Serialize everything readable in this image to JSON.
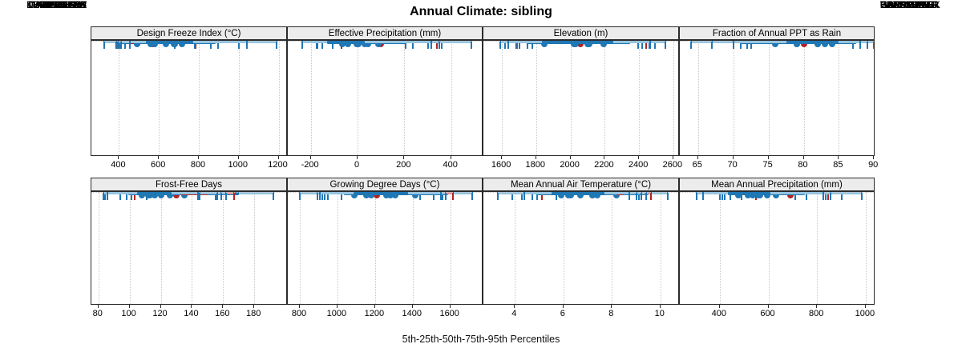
{
  "title": "Annual Climate: sibling",
  "caption": "5th-25th-50th-75th-95th Percentiles",
  "stations": [
    "HARKERS",
    "GAPPMAYER",
    "HORROCKS",
    "HENEFER",
    "BRADSHAW",
    "WALLSBURG",
    "DEER CREEK",
    "BEZZANT"
  ],
  "highlighted_station": "GAPPMAYER",
  "colors": {
    "normal": "#1f77b4",
    "normal_light": "#96c4e0",
    "highlight": "#b22222",
    "highlight_light": "#dd9b9b",
    "strip_bg": "#ececec",
    "panel_border": "#2b2b2b",
    "grid": "#c8c8c8"
  },
  "chart_data": {
    "type": "dot-interval-trellis",
    "layout": "2 rows x 4 cols, shared station rows, GAPPMAYER highlighted",
    "percentiles": [
      5,
      25,
      50,
      75,
      95
    ],
    "panels": [
      {
        "title": "Design Freeze Index (°C)",
        "xlim": [
          262,
          1246
        ],
        "ticks": [
          400,
          600,
          800,
          1000,
          1200
        ],
        "values": [
          [
            325,
            390,
            490,
            565,
            680
          ],
          [
            385,
            460,
            570,
            640,
            785
          ],
          [
            390,
            575,
            675,
            885,
            1000
          ],
          [
            430,
            545,
            680,
            760,
            895
          ],
          [
            405,
            610,
            715,
            855,
            1190
          ],
          [
            400,
            475,
            560,
            650,
            860
          ],
          [
            410,
            480,
            580,
            670,
            780
          ],
          [
            455,
            535,
            635,
            770,
            1040
          ]
        ]
      },
      {
        "title": "Effective Precipitation (mm)",
        "xlim": [
          -298,
          538
        ],
        "ticks": [
          -200,
          0,
          200,
          400
        ],
        "values": [
          [
            -175,
            -40,
            30,
            120,
            360
          ],
          [
            -70,
            -40,
            100,
            210,
            340
          ],
          [
            -170,
            -75,
            5,
            120,
            300
          ],
          [
            -105,
            -40,
            45,
            120,
            235
          ],
          [
            -235,
            -20,
            90,
            210,
            485
          ],
          [
            -150,
            -75,
            -5,
            120,
            350
          ],
          [
            -175,
            -95,
            -40,
            60,
            205
          ],
          [
            -235,
            -130,
            -65,
            30,
            315
          ]
        ]
      },
      {
        "title": "Elevation (m)",
        "xlim": [
          1492,
          2638
        ],
        "ticks": [
          1600,
          1800,
          2000,
          2200,
          2400,
          2600
        ],
        "values": [
          [
            1620,
            1745,
            1845,
            2095,
            2395
          ],
          [
            1685,
            1895,
            2060,
            2245,
            2440
          ],
          [
            1750,
            1905,
            2030,
            2255,
            2460
          ],
          [
            1700,
            1880,
            2110,
            2265,
            2420
          ],
          [
            1590,
            1840,
            2195,
            2350,
            2555
          ],
          [
            1775,
            1955,
            2100,
            2230,
            2495
          ],
          [
            1690,
            1910,
            2105,
            2275,
            2555
          ],
          [
            1635,
            1835,
            2020,
            2250,
            2465
          ]
        ]
      },
      {
        "title": "Fraction of Annual PPT as Rain",
        "xlim": [
          62.4,
          90.2
        ],
        "ticks": [
          65,
          70,
          75,
          80,
          85,
          90
        ],
        "values": [
          [
            72.5,
            80,
            84,
            87.5,
            90
          ],
          [
            71,
            76,
            80,
            84,
            88
          ],
          [
            71,
            76,
            79,
            84,
            88
          ],
          [
            72,
            75,
            79,
            84,
            87
          ],
          [
            64,
            71,
            76,
            80,
            87
          ],
          [
            67,
            75,
            82,
            85.5,
            88
          ],
          [
            72,
            75.5,
            83,
            86,
            89
          ],
          [
            70,
            77.5,
            82,
            85,
            88
          ]
        ]
      },
      {
        "title": "Frost-Free Days",
        "xlim": [
          75.5,
          201.5
        ],
        "ticks": [
          80,
          100,
          120,
          140,
          160,
          180
        ],
        "values": [
          [
            111,
            124,
            135,
            170,
            192
          ],
          [
            103,
            115,
            130,
            150,
            167
          ],
          [
            84,
            99,
            108,
            123,
            162
          ],
          [
            94,
            104,
            112,
            120,
            159
          ],
          [
            83,
            100,
            113,
            128,
            155
          ],
          [
            101,
            110,
            126,
            133,
            156
          ],
          [
            98,
            112,
            120,
            128,
            145
          ],
          [
            86,
            105,
            116,
            127,
            144
          ]
        ]
      },
      {
        "title": "Growing Degree Days (°C)",
        "xlim": [
          736,
          1776
        ],
        "ticks": [
          800,
          1000,
          1200,
          1400,
          1600
        ],
        "values": [
          [
            1020,
            1230,
            1415,
            1590,
            1715
          ],
          [
            920,
            1090,
            1210,
            1330,
            1615
          ],
          [
            950,
            1070,
            1180,
            1330,
            1560
          ],
          [
            930,
            1045,
            1155,
            1330,
            1560
          ],
          [
            800,
            1035,
            1090,
            1230,
            1440
          ],
          [
            920,
            1080,
            1280,
            1410,
            1510
          ],
          [
            895,
            1135,
            1305,
            1435,
            1575
          ],
          [
            905,
            1085,
            1260,
            1375,
            1550
          ]
        ]
      },
      {
        "title": "Mean Annual Air Temperature (°C)",
        "xlim": [
          2.7,
          10.8
        ],
        "ticks": [
          4,
          6,
          8,
          10
        ],
        "values": [
          [
            5.7,
            7.1,
            8.2,
            9.5,
            10.3
          ],
          [
            5.1,
            6.4,
            7.2,
            8.5,
            9.6
          ],
          [
            3.9,
            4.9,
            6.3,
            7.3,
            9.4
          ],
          [
            4.3,
            5.4,
            6.2,
            7.2,
            9.2
          ],
          [
            3.3,
            4.9,
            5.9,
            6.9,
            9.1
          ],
          [
            4.9,
            6.4,
            7.4,
            8.2,
            9.2
          ],
          [
            4.7,
            6.3,
            7.2,
            8.0,
            9.0
          ],
          [
            4.4,
            5.5,
            6.7,
            7.7,
            8.7
          ]
        ]
      },
      {
        "title": "Mean Annual Precipitation (mm)",
        "xlim": [
          236,
          1040
        ],
        "ticks": [
          400,
          600,
          800,
          1000
        ],
        "values": [
          [
            490,
            555,
            630,
            700,
            900
          ],
          [
            548,
            595,
            690,
            745,
            845
          ],
          [
            400,
            460,
            535,
            635,
            835
          ],
          [
            445,
            490,
            565,
            630,
            755
          ],
          [
            305,
            470,
            595,
            750,
            985
          ],
          [
            420,
            490,
            555,
            685,
            855
          ],
          [
            410,
            465,
            515,
            595,
            710
          ],
          [
            330,
            435,
            475,
            610,
            825
          ]
        ]
      }
    ]
  }
}
